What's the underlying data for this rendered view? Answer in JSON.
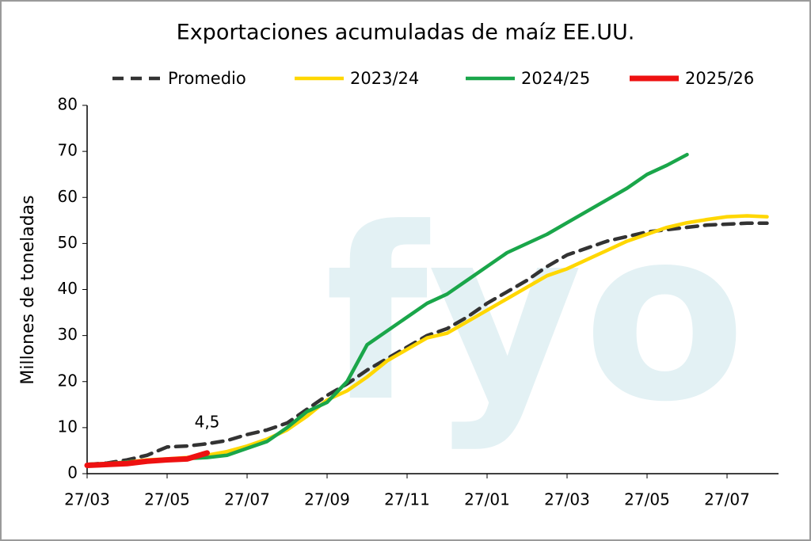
{
  "chart_data": {
    "type": "line",
    "title": "Exportaciones acumuladas de maíz EE.UU.",
    "y_label": "Millones de toneladas",
    "watermark": "fyo",
    "annotation": "4,5",
    "categories": [
      "27/03",
      null,
      null,
      null,
      "27/05",
      null,
      null,
      null,
      "27/07",
      null,
      null,
      null,
      "27/09",
      null,
      null,
      null,
      "27/11",
      null,
      null,
      null,
      "27/01",
      null,
      null,
      null,
      "27/03",
      null,
      null,
      null,
      "27/05",
      null,
      null,
      null,
      "27/07",
      null,
      null
    ],
    "series": [
      {
        "name": "Promedio",
        "color": "#333333",
        "dashed": true,
        "values": [
          2,
          2.3,
          3,
          4,
          5.8,
          6,
          6.5,
          7.2,
          8.5,
          9.5,
          11,
          14,
          17,
          19.5,
          22.5,
          25,
          27.5,
          30,
          31.5,
          34,
          37,
          39.5,
          42,
          45,
          47.5,
          49,
          50.5,
          51.5,
          52.5,
          53,
          53.5,
          54,
          54.2,
          54.4,
          54.4
        ]
      },
      {
        "name": "2023/24",
        "color": "#ffd700",
        "values": [
          2,
          2.2,
          2.5,
          3,
          3.2,
          3.5,
          4,
          4.8,
          6,
          7.5,
          9.5,
          12.5,
          16,
          18,
          21,
          24.5,
          27,
          29.5,
          30.5,
          33,
          35.5,
          38,
          40.5,
          43,
          44.5,
          46.5,
          48.5,
          50.5,
          52,
          53.5,
          54.5,
          55.2,
          55.8,
          56,
          55.8
        ]
      },
      {
        "name": "2024/25",
        "color": "#1aa64a",
        "values": [
          2,
          2.2,
          2.5,
          2.8,
          3,
          3.3,
          3.5,
          4,
          5.5,
          7,
          10,
          13.5,
          15.5,
          20,
          28,
          31,
          34,
          37,
          39,
          42,
          45,
          48,
          50,
          52,
          54.5,
          57,
          59.5,
          62,
          65,
          67,
          69.3,
          null,
          null,
          null,
          null
        ]
      },
      {
        "name": "2025/26",
        "color": "#ee1111",
        "thick": true,
        "values": [
          1.8,
          2,
          2.2,
          2.7,
          3,
          3.2,
          4.5,
          null,
          null,
          null,
          null,
          null,
          null,
          null,
          null,
          null,
          null,
          null,
          null,
          null,
          null,
          null,
          null,
          null,
          null,
          null,
          null,
          null,
          null,
          null,
          null,
          null,
          null,
          null,
          null
        ]
      }
    ],
    "ylim": [
      0,
      80
    ],
    "yticks": [
      0,
      10,
      20,
      30,
      40,
      50,
      60,
      70,
      80
    ]
  }
}
